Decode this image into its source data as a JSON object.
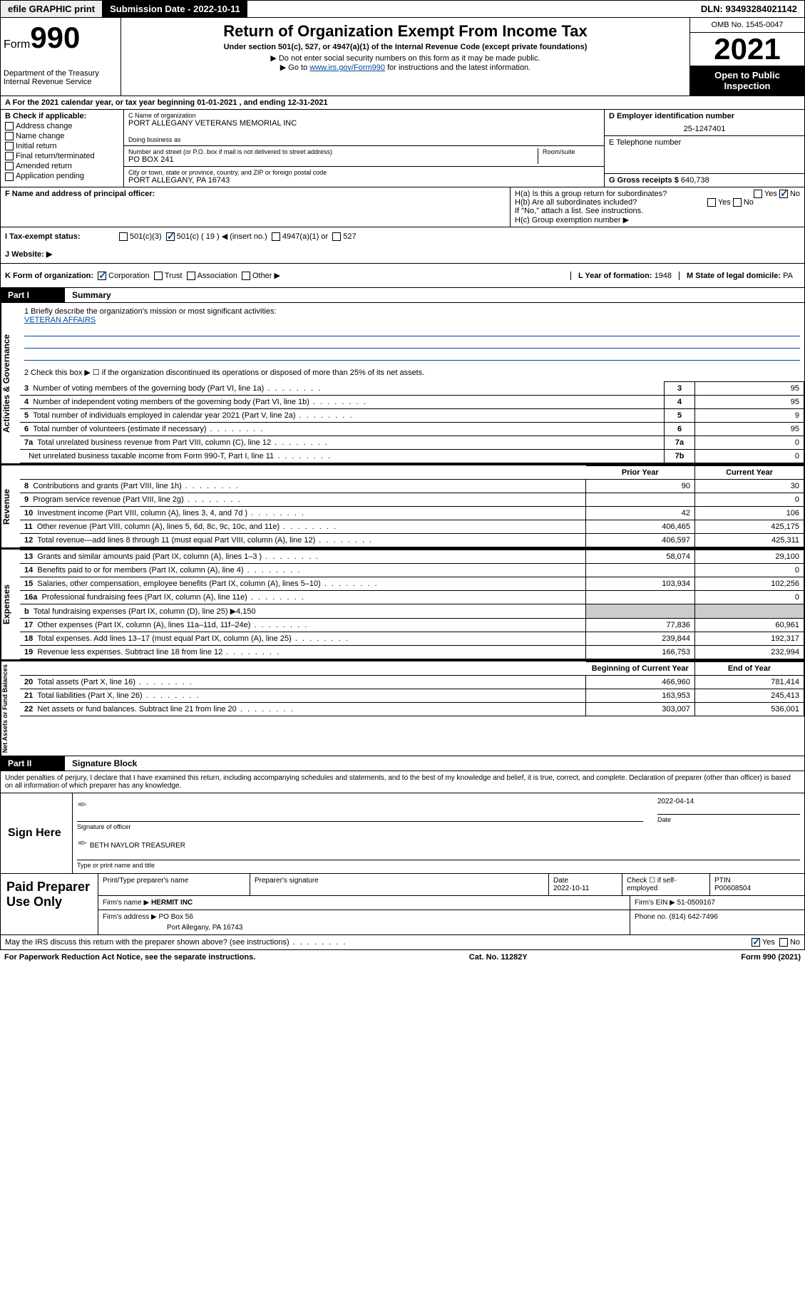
{
  "colors": {
    "link": "#004b9b",
    "black": "#000000",
    "white": "#ffffff",
    "grey": "#eeeeee"
  },
  "top_bar": {
    "efile": "efile GRAPHIC print",
    "sub_date_label": "Submission Date - 2022-10-11",
    "dln": "DLN: 93493284021142"
  },
  "header": {
    "form_word": "Form",
    "form_num": "990",
    "dept": "Department of the Treasury",
    "irs": "Internal Revenue Service",
    "title": "Return of Organization Exempt From Income Tax",
    "sub1": "Under section 501(c), 527, or 4947(a)(1) of the Internal Revenue Code (except private foundations)",
    "sub2": "▶ Do not enter social security numbers on this form as it may be made public.",
    "sub3_pre": "▶ Go to ",
    "sub3_link": "www.irs.gov/Form990",
    "sub3_post": " for instructions and the latest information.",
    "omb": "OMB No. 1545-0047",
    "year": "2021",
    "open": "Open to Public Inspection"
  },
  "row_a": "A For the 2021 calendar year, or tax year beginning 01-01-2021   , and ending 12-31-2021",
  "col_b": {
    "label": "B Check if applicable:",
    "items": [
      "Address change",
      "Name change",
      "Initial return",
      "Final return/terminated",
      "Amended return",
      "Application pending"
    ]
  },
  "col_c": {
    "name_label": "C Name of organization",
    "name": "PORT ALLEGANY VETERANS MEMORIAL INC",
    "dba_label": "Doing business as",
    "dba": "",
    "street_label": "Number and street (or P.O. box if mail is not delivered to street address)",
    "room_label": "Room/suite",
    "street": "PO BOX 241",
    "city_label": "City or town, state or province, country, and ZIP or foreign postal code",
    "city": "PORT ALLEGANY, PA   16743"
  },
  "col_d": {
    "ein_label": "D Employer identification number",
    "ein": "25-1247401",
    "phone_label": "E Telephone number",
    "phone": "",
    "gross_label": "G Gross receipts $",
    "gross": "640,738"
  },
  "row_f": {
    "label": "F  Name and address of principal officer:",
    "value": ""
  },
  "row_h": {
    "ha": "H(a)  Is this a group return for subordinates?",
    "ha_yes": "Yes",
    "ha_no": "No",
    "hb": "H(b)  Are all subordinates included?",
    "hb_yes": "Yes",
    "hb_no": "No",
    "hb_note": "If \"No,\" attach a list. See instructions.",
    "hc": "H(c)  Group exemption number ▶"
  },
  "row_i": {
    "label": "I   Tax-exempt status:",
    "opts": [
      "501(c)(3)",
      "501(c) ( 19 ) ◀ (insert no.)",
      "4947(a)(1) or",
      "527"
    ],
    "checked_index": 1
  },
  "row_j": {
    "label": "J   Website: ▶",
    "value": ""
  },
  "row_k": {
    "label": "K Form of organization:",
    "opts": [
      "Corporation",
      "Trust",
      "Association",
      "Other ▶"
    ],
    "checked_index": 0,
    "l_label": "L Year of formation:",
    "l_val": "1948",
    "m_label": "M State of legal domicile:",
    "m_val": "PA"
  },
  "part1": {
    "label": "Part I",
    "title": "Summary"
  },
  "mission": {
    "q1": "1   Briefly describe the organization's mission or most significant activities:",
    "text": "VETERAN AFFAIRS",
    "q2": "2   Check this box ▶ ☐  if the organization discontinued its operations or disposed of more than 25% of its net assets."
  },
  "gov_rows": [
    {
      "n": "3",
      "desc": "Number of voting members of the governing body (Part VI, line 1a)",
      "lab": "3",
      "val": "95"
    },
    {
      "n": "4",
      "desc": "Number of independent voting members of the governing body (Part VI, line 1b)",
      "lab": "4",
      "val": "95"
    },
    {
      "n": "5",
      "desc": "Total number of individuals employed in calendar year 2021 (Part V, line 2a)",
      "lab": "5",
      "val": "9"
    },
    {
      "n": "6",
      "desc": "Total number of volunteers (estimate if necessary)",
      "lab": "6",
      "val": "95"
    },
    {
      "n": "7a",
      "desc": "Total unrelated business revenue from Part VIII, column (C), line 12",
      "lab": "7a",
      "val": "0"
    },
    {
      "n": "",
      "desc": "Net unrelated business taxable income from Form 990-T, Part I, line 11",
      "lab": "7b",
      "val": "0"
    }
  ],
  "two_col_header": {
    "prior": "Prior Year",
    "current": "Current Year"
  },
  "rev_rows": [
    {
      "n": "8",
      "desc": "Contributions and grants (Part VIII, line 1h)",
      "p": "90",
      "c": "30"
    },
    {
      "n": "9",
      "desc": "Program service revenue (Part VIII, line 2g)",
      "p": "",
      "c": "0"
    },
    {
      "n": "10",
      "desc": "Investment income (Part VIII, column (A), lines 3, 4, and 7d )",
      "p": "42",
      "c": "106"
    },
    {
      "n": "11",
      "desc": "Other revenue (Part VIII, column (A), lines 5, 6d, 8c, 9c, 10c, and 11e)",
      "p": "406,465",
      "c": "425,175"
    },
    {
      "n": "12",
      "desc": "Total revenue—add lines 8 through 11 (must equal Part VIII, column (A), line 12)",
      "p": "406,597",
      "c": "425,311"
    }
  ],
  "exp_rows": [
    {
      "n": "13",
      "desc": "Grants and similar amounts paid (Part IX, column (A), lines 1–3 )",
      "p": "58,074",
      "c": "29,100"
    },
    {
      "n": "14",
      "desc": "Benefits paid to or for members (Part IX, column (A), line 4)",
      "p": "",
      "c": "0"
    },
    {
      "n": "15",
      "desc": "Salaries, other compensation, employee benefits (Part IX, column (A), lines 5–10)",
      "p": "103,934",
      "c": "102,256"
    },
    {
      "n": "16a",
      "desc": "Professional fundraising fees (Part IX, column (A), line 11e)",
      "p": "",
      "c": "0"
    },
    {
      "n": "b",
      "desc": "Total fundraising expenses (Part IX, column (D), line 25) ▶4,150",
      "p": "__shade__",
      "c": "__shade__"
    },
    {
      "n": "17",
      "desc": "Other expenses (Part IX, column (A), lines 11a–11d, 11f–24e)",
      "p": "77,836",
      "c": "60,961"
    },
    {
      "n": "18",
      "desc": "Total expenses. Add lines 13–17 (must equal Part IX, column (A), line 25)",
      "p": "239,844",
      "c": "192,317"
    },
    {
      "n": "19",
      "desc": "Revenue less expenses. Subtract line 18 from line 12",
      "p": "166,753",
      "c": "232,994"
    }
  ],
  "net_header": {
    "begin": "Beginning of Current Year",
    "end": "End of Year"
  },
  "net_rows": [
    {
      "n": "20",
      "desc": "Total assets (Part X, line 16)",
      "p": "466,960",
      "c": "781,414"
    },
    {
      "n": "21",
      "desc": "Total liabilities (Part X, line 26)",
      "p": "163,953",
      "c": "245,413"
    },
    {
      "n": "22",
      "desc": "Net assets or fund balances. Subtract line 21 from line 20",
      "p": "303,007",
      "c": "536,001"
    }
  ],
  "vtabs": {
    "gov": "Activities & Governance",
    "rev": "Revenue",
    "exp": "Expenses",
    "net": "Net Assets or Fund Balances"
  },
  "part2": {
    "label": "Part II",
    "title": "Signature Block"
  },
  "sig": {
    "penalty": "Under penalties of perjury, I declare that I have examined this return, including accompanying schedules and statements, and to the best of my knowledge and belief, it is true, correct, and complete. Declaration of preparer (other than officer) is based on all information of which preparer has any knowledge.",
    "sign_here": "Sign Here",
    "sig_officer": "Signature of officer",
    "date_label": "Date",
    "date": "2022-04-14",
    "name": "BETH NAYLOR  TREASURER",
    "name_label": "Type or print name and title"
  },
  "paid": {
    "label": "Paid Preparer Use Only",
    "h1": "Print/Type preparer's name",
    "h2": "Preparer's signature",
    "h3_label": "Date",
    "h3": "2022-10-11",
    "h4_label": "Check ☐ if self-employed",
    "h5_label": "PTIN",
    "h5": "P00608504",
    "firm_name_label": "Firm's name   ▶",
    "firm_name": "HERMIT INC",
    "firm_ein_label": "Firm's EIN ▶",
    "firm_ein": "51-0509167",
    "firm_addr_label": "Firm's address ▶",
    "firm_addr1": "PO Box 56",
    "firm_addr2": "Port Allegany, PA   16743",
    "phone_label": "Phone no.",
    "phone": "(814) 642-7496"
  },
  "footer": {
    "discuss": "May the IRS discuss this return with the preparer shown above? (see instructions)",
    "yes": "Yes",
    "no": "No",
    "pra": "For Paperwork Reduction Act Notice, see the separate instructions.",
    "cat": "Cat. No. 11282Y",
    "form": "Form 990 (2021)"
  }
}
